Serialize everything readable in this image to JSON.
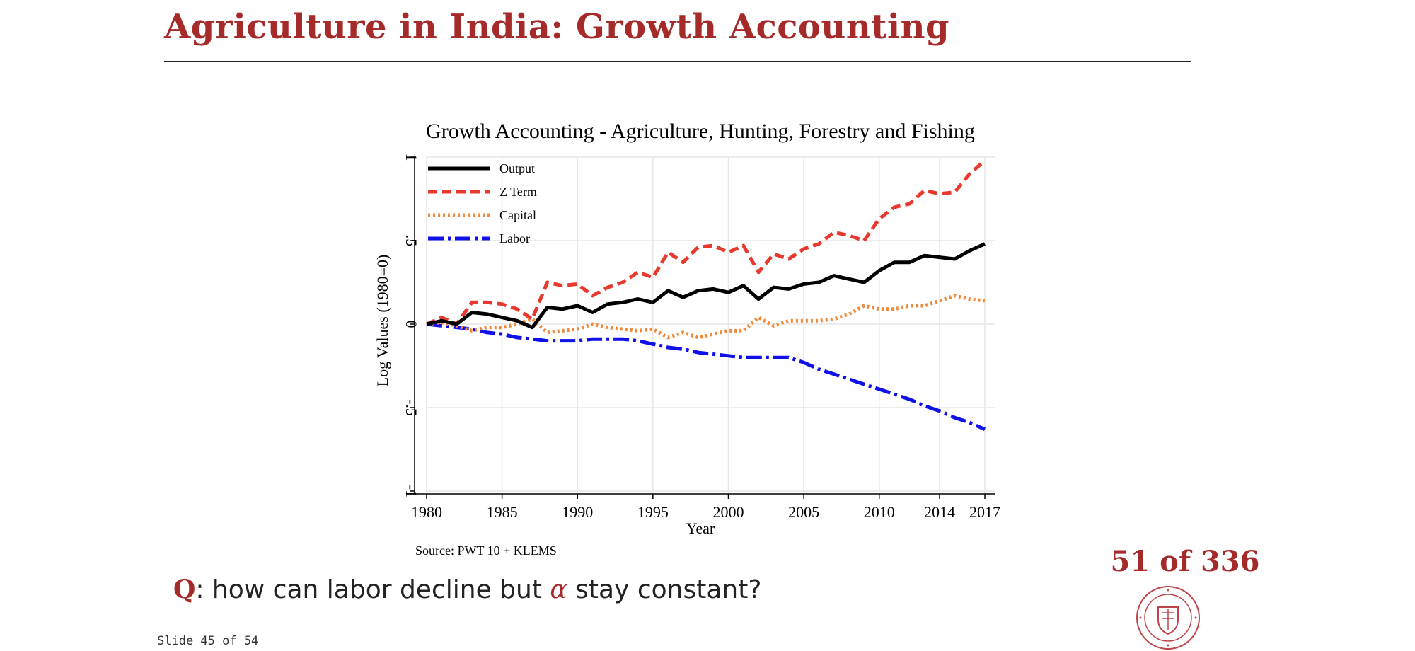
{
  "slide": {
    "title": "Agriculture in India: Growth Accounting",
    "question_mark": "Q",
    "question_pre": ": how can labor decline but ",
    "question_symbol": "α",
    "question_post": " stay constant?",
    "counter": "51 of 336",
    "footer": "Slide 45 of 54"
  },
  "colors": {
    "title": "#a52a2a",
    "output": "#000000",
    "zterm": "#e8392e",
    "capital": "#f08a3a",
    "labor": "#1010e8",
    "grid": "#e6e6e6"
  },
  "chart_data": {
    "type": "line",
    "title": "Growth Accounting - Agriculture, Hunting, Forestry and Fishing",
    "xlabel": "Year",
    "ylabel": "Log Values (1980=0)",
    "source": "Source: PWT 10 + KLEMS",
    "xlim": [
      1980,
      2017
    ],
    "ylim": [
      -1,
      1
    ],
    "x_ticks": [
      1980,
      1985,
      1990,
      1995,
      2000,
      2005,
      2010,
      2014,
      2017
    ],
    "y_ticks": [
      -1,
      -0.5,
      0,
      0.5,
      1
    ],
    "y_tick_labels": [
      "-1",
      "-.5",
      "0",
      ".5",
      "1"
    ],
    "grid": true,
    "legend_position": "top-left",
    "x": [
      1980,
      1981,
      1982,
      1983,
      1984,
      1985,
      1986,
      1987,
      1988,
      1989,
      1990,
      1991,
      1992,
      1993,
      1994,
      1995,
      1996,
      1997,
      1998,
      1999,
      2000,
      2001,
      2002,
      2003,
      2004,
      2005,
      2006,
      2007,
      2008,
      2009,
      2010,
      2011,
      2012,
      2013,
      2014,
      2015,
      2016,
      2017
    ],
    "series": [
      {
        "name": "Output",
        "style": "solid",
        "values": [
          0,
          0.02,
          0,
          0.07,
          0.06,
          0.04,
          0.02,
          -0.02,
          0.1,
          0.09,
          0.11,
          0.07,
          0.12,
          0.13,
          0.15,
          0.13,
          0.2,
          0.16,
          0.2,
          0.21,
          0.19,
          0.23,
          0.15,
          0.22,
          0.21,
          0.24,
          0.25,
          0.29,
          0.27,
          0.25,
          0.32,
          0.37,
          0.37,
          0.41,
          0.4,
          0.39,
          0.44,
          0.48
        ]
      },
      {
        "name": "Z Term",
        "style": "dash",
        "values": [
          0,
          0.04,
          0,
          0.13,
          0.13,
          0.12,
          0.09,
          0.03,
          0.25,
          0.23,
          0.24,
          0.17,
          0.22,
          0.25,
          0.31,
          0.28,
          0.43,
          0.37,
          0.46,
          0.47,
          0.43,
          0.47,
          0.31,
          0.42,
          0.39,
          0.45,
          0.48,
          0.55,
          0.53,
          0.5,
          0.63,
          0.7,
          0.72,
          0.8,
          0.78,
          0.79,
          0.9,
          0.98
        ]
      },
      {
        "name": "Capital",
        "style": "dot",
        "values": [
          0,
          0.01,
          -0.01,
          -0.04,
          -0.02,
          -0.02,
          0,
          0.03,
          -0.05,
          -0.04,
          -0.03,
          0,
          -0.02,
          -0.03,
          -0.04,
          -0.03,
          -0.08,
          -0.05,
          -0.08,
          -0.06,
          -0.04,
          -0.04,
          0.04,
          -0.01,
          0.02,
          0.02,
          0.02,
          0.03,
          0.06,
          0.11,
          0.09,
          0.09,
          0.11,
          0.11,
          0.14,
          0.17,
          0.15,
          0.14
        ]
      },
      {
        "name": "Labor",
        "style": "dashdot",
        "values": [
          0,
          -0.01,
          -0.02,
          -0.03,
          -0.05,
          -0.06,
          -0.08,
          -0.09,
          -0.1,
          -0.1,
          -0.1,
          -0.09,
          -0.09,
          -0.09,
          -0.1,
          -0.12,
          -0.14,
          -0.15,
          -0.17,
          -0.18,
          -0.19,
          -0.2,
          -0.2,
          -0.2,
          -0.2,
          -0.23,
          -0.27,
          -0.3,
          -0.33,
          -0.36,
          -0.39,
          -0.42,
          -0.45,
          -0.49,
          -0.52,
          -0.56,
          -0.59,
          -0.63
        ]
      }
    ]
  }
}
